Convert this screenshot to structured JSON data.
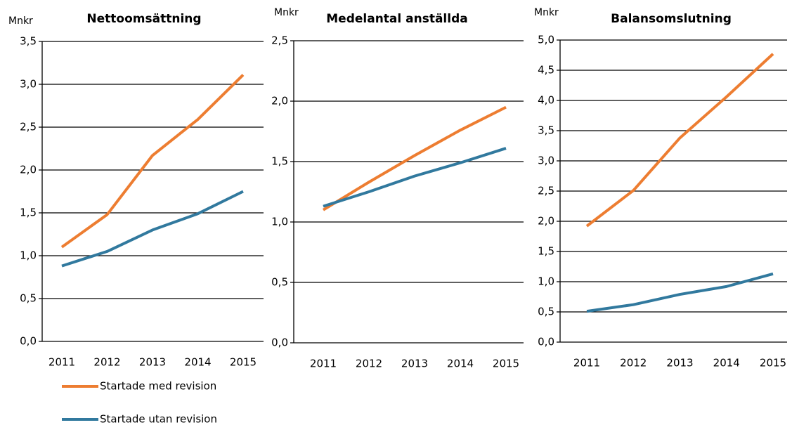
{
  "chart_data": [
    {
      "type": "line",
      "title": "Nettoomsättning",
      "y_label": "Mnkr",
      "categories": [
        "2011",
        "2012",
        "2013",
        "2014",
        "2015"
      ],
      "series": [
        {
          "name": "Startade med revision",
          "color": "#ed7d31",
          "values": [
            1.1,
            1.48,
            2.17,
            2.59,
            3.11
          ]
        },
        {
          "name": "Startade utan revision",
          "color": "#31799e",
          "values": [
            0.88,
            1.05,
            1.3,
            1.49,
            1.75
          ]
        }
      ],
      "ylim": [
        0,
        3.5
      ],
      "yticks": [
        {
          "value": 0,
          "label": "0,0"
        },
        {
          "value": 0.5,
          "label": "0,5"
        },
        {
          "value": 1,
          "label": "1,0"
        },
        {
          "value": 1.5,
          "label": "1,5"
        },
        {
          "value": 2,
          "label": "2,0"
        },
        {
          "value": 2.5,
          "label": "2,5"
        },
        {
          "value": 3,
          "label": "3,0"
        },
        {
          "value": 3.5,
          "label": "3,5"
        }
      ],
      "grid": true
    },
    {
      "type": "line",
      "title": "Medelantal  anställda",
      "y_label": "Mnkr",
      "categories": [
        "2011",
        "2012",
        "2013",
        "2014",
        "2015"
      ],
      "series": [
        {
          "color": "#ed7d31",
          "values": [
            1.1,
            1.33,
            1.55,
            1.76,
            1.95
          ]
        },
        {
          "color": "#31799e",
          "values": [
            1.13,
            1.25,
            1.38,
            1.49,
            1.61
          ]
        }
      ],
      "ylim": [
        0,
        2.5
      ],
      "yticks": [
        {
          "value": 0,
          "label": "0,0"
        },
        {
          "value": 0.5,
          "label": "0,5"
        },
        {
          "value": 1,
          "label": "1,0"
        },
        {
          "value": 1.5,
          "label": "1,5"
        },
        {
          "value": 2,
          "label": "2,0"
        },
        {
          "value": 2.5,
          "label": "2,5"
        }
      ],
      "grid": true
    },
    {
      "type": "line",
      "title": "Balansomslutning",
      "y_label": "Mnkr",
      "categories": [
        "2011",
        "2012",
        "2013",
        "2014",
        "2015"
      ],
      "series": [
        {
          "color": "#ed7d31",
          "values": [
            1.92,
            2.51,
            3.38,
            4.06,
            4.77
          ]
        },
        {
          "color": "#31799e",
          "values": [
            0.51,
            0.62,
            0.79,
            0.92,
            1.13
          ]
        }
      ],
      "ylim": [
        0,
        5
      ],
      "yticks": [
        {
          "value": 0,
          "label": "0,0"
        },
        {
          "value": 0.5,
          "label": "0,5"
        },
        {
          "value": 1,
          "label": "1,0"
        },
        {
          "value": 1.5,
          "label": "1,5"
        },
        {
          "value": 2,
          "label": "2,0"
        },
        {
          "value": 2.5,
          "label": "2,5"
        },
        {
          "value": 3,
          "label": "3,0"
        },
        {
          "value": 3.5,
          "label": "3,5"
        },
        {
          "value": 4,
          "label": "4,0"
        },
        {
          "value": 4.5,
          "label": "4,5"
        },
        {
          "value": 5,
          "label": "5,0"
        }
      ],
      "grid": true
    }
  ]
}
